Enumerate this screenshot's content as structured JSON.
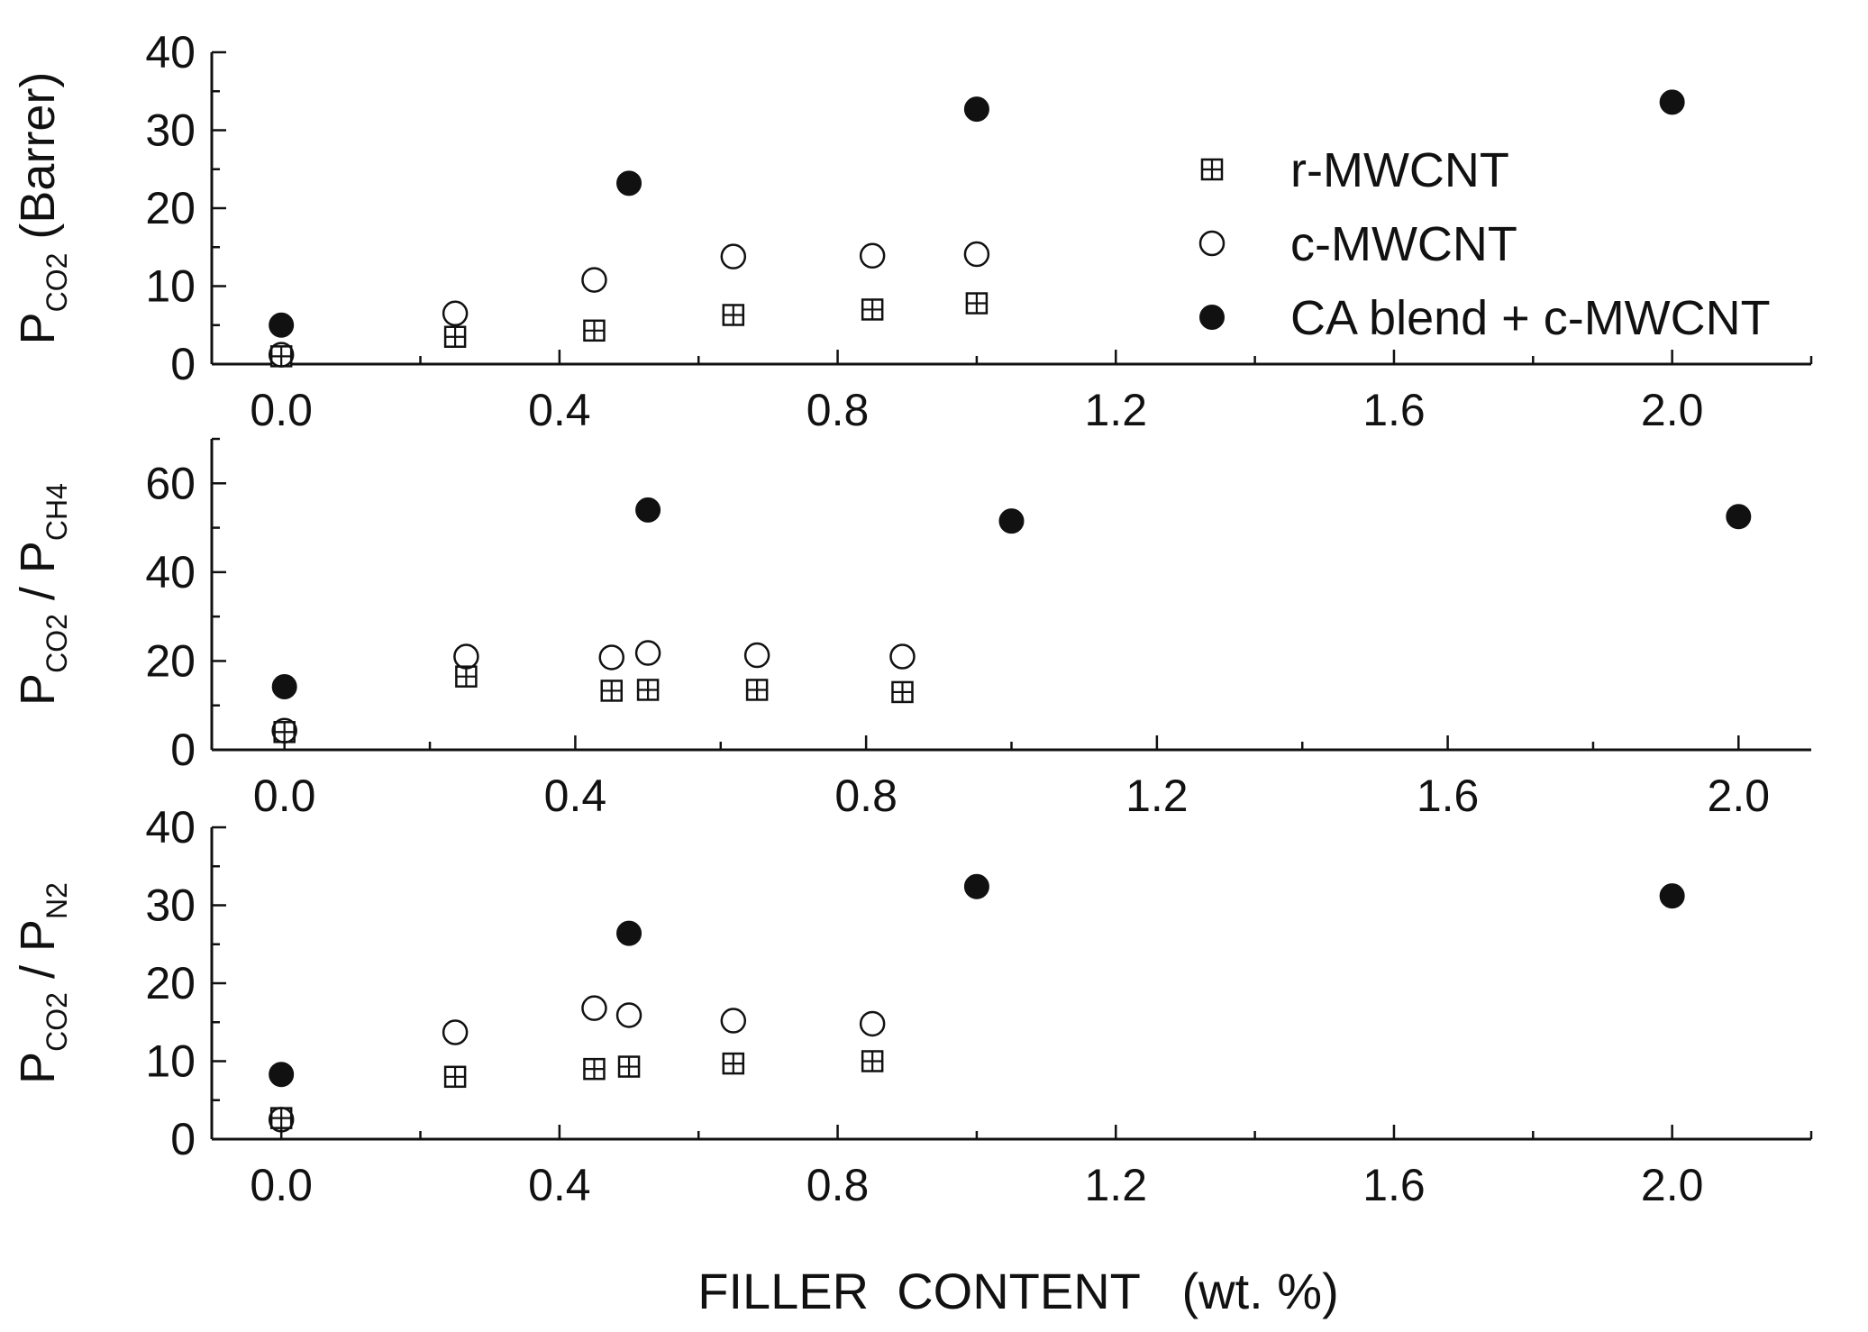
{
  "chart_data": [
    {
      "type": "scatter",
      "xlabel": "",
      "ylabel": {
        "main": "P",
        "sub": "CO2",
        "tail": " (Barrer)"
      },
      "xlim": [
        -0.1,
        2.2
      ],
      "ylim": [
        0,
        40
      ],
      "xticks": [
        0.0,
        0.4,
        0.8,
        1.2,
        1.6,
        2.0
      ],
      "xtick_labels": [
        "0.0",
        "0.4",
        "0.8",
        "1.2",
        "1.6",
        "2.0"
      ],
      "yticks": [
        0,
        10,
        20,
        30,
        40
      ],
      "ytick_labels": [
        "0",
        "10",
        "20",
        "30",
        "40"
      ],
      "legend": "top-right",
      "series": [
        {
          "name": "r-MWCNT",
          "marker": "boxplus",
          "x": [
            0.0,
            0.25,
            0.45,
            0.65,
            0.85,
            1.0
          ],
          "y": [
            1.0,
            3.5,
            4.3,
            6.3,
            7.0,
            7.8
          ]
        },
        {
          "name": "c-MWCNT",
          "marker": "open-circle",
          "x": [
            0.0,
            0.25,
            0.45,
            0.65,
            0.85,
            1.0
          ],
          "y": [
            1.2,
            6.5,
            10.8,
            13.8,
            13.9,
            14.1
          ]
        },
        {
          "name": "CA blend + c-MWCNT",
          "marker": "filled-circle",
          "x": [
            0.0,
            0.5,
            1.0,
            2.0
          ],
          "y": [
            5.0,
            23.2,
            32.7,
            33.6
          ]
        }
      ]
    },
    {
      "type": "scatter",
      "xlabel": "",
      "ylabel": {
        "main": "P",
        "sub": "CO2",
        "mid": " / P",
        "sub2": "CH4"
      },
      "xlim": [
        -0.1,
        2.1
      ],
      "ylim": [
        0,
        70
      ],
      "xticks": [
        0.0,
        0.4,
        0.8,
        1.2,
        1.6,
        2.0
      ],
      "xtick_labels": [
        "0.0",
        "0.4",
        "0.8",
        "1.2",
        "1.6",
        "2.0"
      ],
      "yticks": [
        0,
        20,
        40,
        60
      ],
      "ytick_labels": [
        "0",
        "20",
        "40",
        "60"
      ],
      "series": [
        {
          "name": "r-MWCNT",
          "marker": "boxplus",
          "x": [
            0.0,
            0.25,
            0.45,
            0.5,
            0.65,
            0.85
          ],
          "y": [
            4.0,
            16.5,
            13.3,
            13.5,
            13.5,
            13.0
          ]
        },
        {
          "name": "c-MWCNT",
          "marker": "open-circle",
          "x": [
            0.0,
            0.25,
            0.45,
            0.5,
            0.65,
            0.85
          ],
          "y": [
            4.3,
            21.0,
            20.8,
            21.8,
            21.3,
            21.0
          ]
        },
        {
          "name": "CA blend + c-MWCNT",
          "marker": "filled-circle",
          "x": [
            0.0,
            0.5,
            1.0,
            2.0
          ],
          "y": [
            14.2,
            54.0,
            51.5,
            52.5
          ]
        }
      ]
    },
    {
      "type": "scatter",
      "xlabel": "FILLER  CONTENT   (wt. %)",
      "ylabel": {
        "main": "P",
        "sub": "CO2",
        "mid": " / P",
        "sub2": "N2"
      },
      "xlim": [
        -0.1,
        2.2
      ],
      "ylim": [
        0,
        40
      ],
      "xticks": [
        0.0,
        0.4,
        0.8,
        1.2,
        1.6,
        2.0
      ],
      "xtick_labels": [
        "0.0",
        "0.4",
        "0.8",
        "1.2",
        "1.6",
        "2.0"
      ],
      "yticks": [
        0,
        10,
        20,
        30,
        40
      ],
      "ytick_labels": [
        "0",
        "10",
        "20",
        "30",
        "40"
      ],
      "series": [
        {
          "name": "r-MWCNT",
          "marker": "boxplus",
          "x": [
            0.0,
            0.25,
            0.45,
            0.5,
            0.65,
            0.85
          ],
          "y": [
            2.7,
            8.0,
            9.0,
            9.3,
            9.7,
            10.0
          ]
        },
        {
          "name": "c-MWCNT",
          "marker": "open-circle",
          "x": [
            0.0,
            0.25,
            0.45,
            0.5,
            0.65,
            0.85
          ],
          "y": [
            2.5,
            13.7,
            16.8,
            15.9,
            15.2,
            14.8
          ]
        },
        {
          "name": "CA blend + c-MWCNT",
          "marker": "filled-circle",
          "x": [
            0.0,
            0.5,
            1.0,
            2.0
          ],
          "y": [
            8.3,
            26.4,
            32.4,
            31.2
          ]
        }
      ]
    }
  ]
}
